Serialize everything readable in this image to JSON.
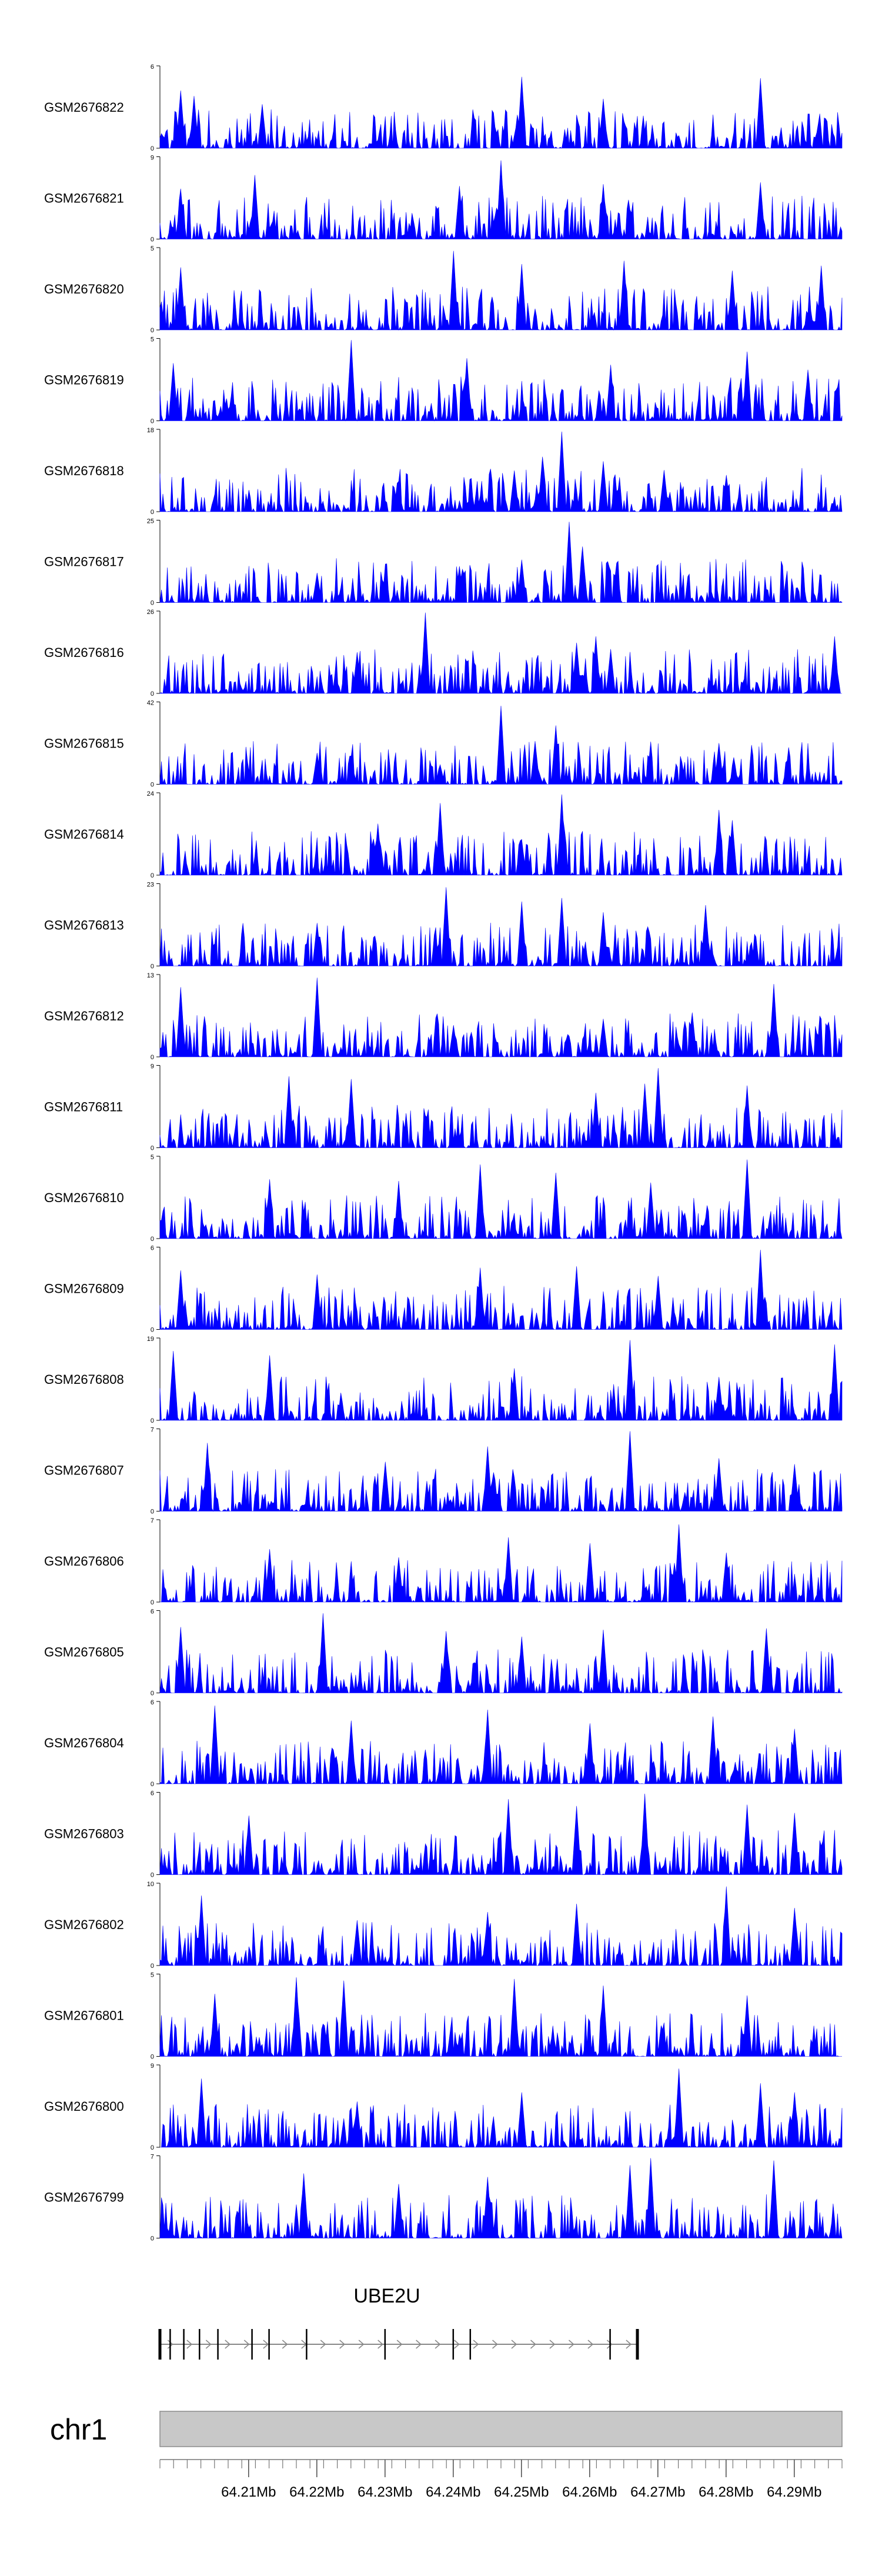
{
  "chart_data": {
    "type": "area",
    "fill_color": "#0000ff",
    "x_axis": {
      "chromosome": "chr1",
      "unit": "Mb",
      "range": [
        64.197,
        64.297
      ],
      "ticks": [
        "64.21Mb",
        "64.22Mb",
        "64.23Mb",
        "64.24Mb",
        "64.25Mb",
        "64.26Mb",
        "64.27Mb",
        "64.28Mb",
        "64.29Mb"
      ]
    },
    "gene": {
      "name": "UBE2U",
      "strand": "+",
      "start": 64.197,
      "end": 64.267,
      "exons": [
        64.197,
        64.1985,
        64.2005,
        64.2028,
        64.2055,
        64.2105,
        64.213,
        64.2185,
        64.23,
        64.24,
        64.2425,
        64.263,
        64.267
      ]
    },
    "tracks": [
      {
        "name": "GSM2676822",
        "ymax": 6,
        "ymin": 0,
        "ymax_label": "6",
        "ymin_label": "0",
        "seed": 22,
        "peaks": [
          [
            64.2,
            4.2
          ],
          [
            64.202,
            3.8
          ],
          [
            64.212,
            3.2
          ],
          [
            64.25,
            5.2
          ],
          [
            64.262,
            3.6
          ],
          [
            64.285,
            5.1
          ]
        ]
      },
      {
        "name": "GSM2676821",
        "ymax": 9,
        "ymin": 0,
        "ymax_label": "9",
        "ymin_label": "0",
        "seed": 21,
        "peaks": [
          [
            64.2,
            5.5
          ],
          [
            64.211,
            7
          ],
          [
            64.247,
            8.6
          ],
          [
            64.241,
            5.8
          ],
          [
            64.262,
            6
          ],
          [
            64.285,
            6.2
          ]
        ]
      },
      {
        "name": "GSM2676820",
        "ymax": 5,
        "ymin": 0,
        "ymax_label": "5",
        "ymin_label": "0",
        "seed": 20,
        "peaks": [
          [
            64.2,
            3.8
          ],
          [
            64.24,
            4.8
          ],
          [
            64.25,
            4
          ],
          [
            64.265,
            4.2
          ],
          [
            64.281,
            3.6
          ],
          [
            64.294,
            3.9
          ]
        ]
      },
      {
        "name": "GSM2676819",
        "ymax": 5,
        "ymin": 0,
        "ymax_label": "5",
        "ymin_label": "0",
        "seed": 19,
        "peaks": [
          [
            64.225,
            4.9
          ],
          [
            64.199,
            3.5
          ],
          [
            64.242,
            3.8
          ],
          [
            64.263,
            3.4
          ],
          [
            64.283,
            4.2
          ],
          [
            64.292,
            3.1
          ]
        ]
      },
      {
        "name": "GSM2676818",
        "ymax": 18,
        "ymin": 0,
        "ymax_label": "18",
        "ymin_label": "0",
        "seed": 18,
        "peaks": [
          [
            64.256,
            17.5
          ],
          [
            64.253,
            12
          ],
          [
            64.262,
            11
          ],
          [
            64.249,
            9
          ],
          [
            64.271,
            9
          ],
          [
            64.28,
            8
          ]
        ]
      },
      {
        "name": "GSM2676817",
        "ymax": 25,
        "ymin": 0,
        "ymax_label": "25",
        "ymin_label": "0",
        "seed": 17,
        "peaks": [
          [
            64.257,
            24.5
          ],
          [
            64.259,
            17
          ],
          [
            64.25,
            13
          ],
          [
            64.241,
            11
          ],
          [
            64.264,
            12
          ],
          [
            64.22,
            9
          ]
        ]
      },
      {
        "name": "GSM2676816",
        "ymax": 26,
        "ymin": 0,
        "ymax_label": "26",
        "ymin_label": "0",
        "seed": 16,
        "peaks": [
          [
            64.236,
            25.5
          ],
          [
            64.226,
            13
          ],
          [
            64.258,
            16
          ],
          [
            64.261,
            18
          ],
          [
            64.263,
            14
          ],
          [
            64.296,
            18
          ]
        ]
      },
      {
        "name": "GSM2676815",
        "ymax": 42,
        "ymin": 0,
        "ymax_label": "42",
        "ymin_label": "0",
        "seed": 15,
        "peaks": [
          [
            64.247,
            40
          ],
          [
            64.255,
            30
          ],
          [
            64.252,
            22
          ],
          [
            64.279,
            21
          ],
          [
            64.238,
            10
          ],
          [
            64.22,
            16
          ]
        ]
      },
      {
        "name": "GSM2676814",
        "ymax": 24,
        "ymin": 0,
        "ymax_label": "24",
        "ymin_label": "0",
        "seed": 14,
        "peaks": [
          [
            64.238,
            21
          ],
          [
            64.256,
            23.5
          ],
          [
            64.279,
            19
          ],
          [
            64.281,
            16
          ],
          [
            64.25,
            10
          ],
          [
            64.229,
            15
          ]
        ]
      },
      {
        "name": "GSM2676813",
        "ymax": 23,
        "ymin": 0,
        "ymax_label": "23",
        "ymin_label": "0",
        "seed": 13,
        "peaks": [
          [
            64.239,
            22
          ],
          [
            64.25,
            18
          ],
          [
            64.256,
            19
          ],
          [
            64.277,
            17
          ],
          [
            64.22,
            12
          ],
          [
            64.262,
            15
          ]
        ]
      },
      {
        "name": "GSM2676812",
        "ymax": 13,
        "ymin": 0,
        "ymax_label": "13",
        "ymin_label": "0",
        "seed": 12,
        "peaks": [
          [
            64.2,
            11
          ],
          [
            64.22,
            12.5
          ],
          [
            64.287,
            11.5
          ],
          [
            64.275,
            7
          ],
          [
            64.262,
            6
          ],
          [
            64.24,
            5
          ]
        ]
      },
      {
        "name": "GSM2676811",
        "ymax": 9,
        "ymin": 0,
        "ymax_label": "9",
        "ymin_label": "0",
        "seed": 11,
        "peaks": [
          [
            64.216,
            7.8
          ],
          [
            64.225,
            7.5
          ],
          [
            64.27,
            8.7
          ],
          [
            64.268,
            7
          ],
          [
            64.283,
            6.8
          ],
          [
            64.261,
            6
          ]
        ]
      },
      {
        "name": "GSM2676810",
        "ymax": 5,
        "ymin": 0,
        "ymax_label": "5",
        "ymin_label": "0",
        "seed": 10,
        "peaks": [
          [
            64.244,
            4.5
          ],
          [
            64.255,
            4
          ],
          [
            64.283,
            4.8
          ],
          [
            64.213,
            3.6
          ],
          [
            64.232,
            3.5
          ],
          [
            64.269,
            3.4
          ]
        ]
      },
      {
        "name": "GSM2676809",
        "ymax": 6,
        "ymin": 0,
        "ymax_label": "6",
        "ymin_label": "0",
        "seed": 9,
        "peaks": [
          [
            64.285,
            5.8
          ],
          [
            64.2,
            4.3
          ],
          [
            64.244,
            4.5
          ],
          [
            64.258,
            4.6
          ],
          [
            64.22,
            4
          ],
          [
            64.27,
            3.9
          ]
        ]
      },
      {
        "name": "GSM2676808",
        "ymax": 19,
        "ymin": 0,
        "ymax_label": "19",
        "ymin_label": "0",
        "seed": 8,
        "peaks": [
          [
            64.199,
            16
          ],
          [
            64.213,
            15
          ],
          [
            64.266,
            18.5
          ],
          [
            64.296,
            17.5
          ],
          [
            64.249,
            12
          ],
          [
            64.279,
            10
          ]
        ]
      },
      {
        "name": "GSM2676807",
        "ymax": 7,
        "ymin": 0,
        "ymax_label": "7",
        "ymin_label": "0",
        "seed": 7,
        "peaks": [
          [
            64.204,
            5.8
          ],
          [
            64.245,
            5.5
          ],
          [
            64.266,
            6.8
          ],
          [
            64.23,
            4.2
          ],
          [
            64.279,
            4.5
          ],
          [
            64.29,
            4
          ]
        ]
      },
      {
        "name": "GSM2676806",
        "ymax": 7,
        "ymin": 0,
        "ymax_label": "7",
        "ymin_label": "0",
        "seed": 6,
        "peaks": [
          [
            64.273,
            6.6
          ],
          [
            64.248,
            5.5
          ],
          [
            64.213,
            4.5
          ],
          [
            64.26,
            5
          ],
          [
            64.28,
            4.2
          ],
          [
            64.232,
            3.8
          ]
        ]
      },
      {
        "name": "GSM2676805",
        "ymax": 6,
        "ymin": 0,
        "ymax_label": "6",
        "ymin_label": "0",
        "seed": 5,
        "peaks": [
          [
            64.221,
            5.8
          ],
          [
            64.2,
            4.8
          ],
          [
            64.239,
            4.5
          ],
          [
            64.262,
            4.6
          ],
          [
            64.286,
            4.7
          ],
          [
            64.25,
            4.1
          ]
        ]
      },
      {
        "name": "GSM2676804",
        "ymax": 6,
        "ymin": 0,
        "ymax_label": "6",
        "ymin_label": "0",
        "seed": 4,
        "peaks": [
          [
            64.205,
            5.7
          ],
          [
            64.245,
            5.4
          ],
          [
            64.225,
            4.6
          ],
          [
            64.26,
            4.4
          ],
          [
            64.278,
            4.9
          ],
          [
            64.29,
            4
          ]
        ]
      },
      {
        "name": "GSM2676803",
        "ymax": 6,
        "ymin": 0,
        "ymax_label": "6",
        "ymin_label": "0",
        "seed": 3,
        "peaks": [
          [
            64.248,
            5.5
          ],
          [
            64.268,
            5.9
          ],
          [
            64.258,
            5
          ],
          [
            64.21,
            4.3
          ],
          [
            64.283,
            5.1
          ],
          [
            64.29,
            4.5
          ]
        ]
      },
      {
        "name": "GSM2676802",
        "ymax": 10,
        "ymin": 0,
        "ymax_label": "10",
        "ymin_label": "0",
        "seed": 2,
        "peaks": [
          [
            64.203,
            8.5
          ],
          [
            64.28,
            9.6
          ],
          [
            64.258,
            7.5
          ],
          [
            64.245,
            6.5
          ],
          [
            64.226,
            5.5
          ],
          [
            64.29,
            7
          ]
        ]
      },
      {
        "name": "GSM2676801",
        "ymax": 5,
        "ymin": 0,
        "ymax_label": "5",
        "ymin_label": "0",
        "seed": 1,
        "peaks": [
          [
            64.217,
            4.8
          ],
          [
            64.224,
            4.6
          ],
          [
            64.249,
            4.7
          ],
          [
            64.262,
            4.3
          ],
          [
            64.205,
            3.8
          ],
          [
            64.283,
            3.7
          ]
        ]
      },
      {
        "name": "GSM2676800",
        "ymax": 9,
        "ymin": 0,
        "ymax_label": "9",
        "ymin_label": "0",
        "seed": 30,
        "peaks": [
          [
            64.273,
            8.6
          ],
          [
            64.203,
            7.5
          ],
          [
            64.25,
            6
          ],
          [
            64.285,
            7
          ],
          [
            64.226,
            5
          ],
          [
            64.29,
            6
          ]
        ]
      },
      {
        "name": "GSM2676799",
        "ymax": 7,
        "ymin": 0,
        "ymax_label": "7",
        "ymin_label": "0",
        "seed": 31,
        "peaks": [
          [
            64.269,
            6.8
          ],
          [
            64.266,
            6.2
          ],
          [
            64.287,
            6.6
          ],
          [
            64.218,
            5.5
          ],
          [
            64.245,
            5.2
          ],
          [
            64.232,
            4.6
          ]
        ]
      }
    ]
  }
}
